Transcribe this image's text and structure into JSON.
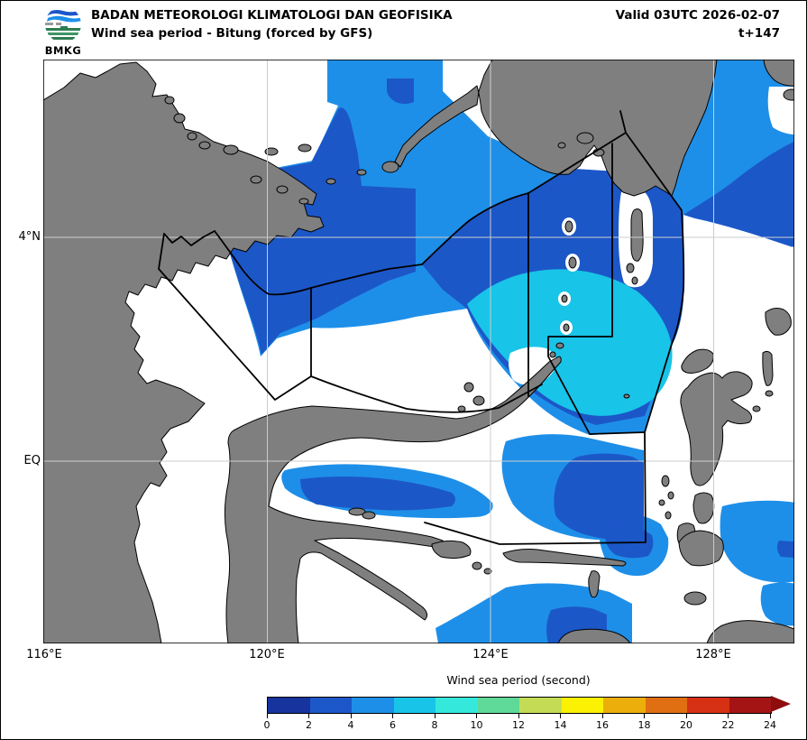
{
  "header": {
    "agency": "BADAN METEOROLOGI KLIMATOLOGI DAN GEOFISIKA",
    "product": "Wind sea period - Bitung (forced by GFS)",
    "valid": "Valid 03UTC 2026-02-07",
    "tstep": "t+147",
    "logo_text": "BMKG"
  },
  "map": {
    "lat_labels": [
      {
        "text": "4°N"
      },
      {
        "text": "EQ"
      }
    ],
    "lon_labels": [
      {
        "text": "116°E"
      },
      {
        "text": "120°E"
      },
      {
        "text": "124°E"
      },
      {
        "text": "128°E"
      }
    ]
  },
  "colorbar": {
    "title": "Wind sea period (second)",
    "unit": "second",
    "range_min": 0,
    "range_max": 24,
    "tick_step": 2,
    "ticks": [
      "0",
      "2",
      "4",
      "6",
      "8",
      "10",
      "12",
      "14",
      "16",
      "18",
      "20",
      "22",
      "24"
    ],
    "segment_colors": [
      "#16339E",
      "#1C57C8",
      "#1E8FE8",
      "#18C4E8",
      "#35E8DC",
      "#5FD998",
      "#C4DC55",
      "#FBF102",
      "#EBAE0A",
      "#E06E12",
      "#D63114",
      "#A41414"
    ],
    "arrow_color": "#8E0E0E"
  },
  "palette": {
    "land": "#7F7F7F",
    "coastline": "#000000",
    "sea_calm": "#FFFFFF",
    "period_2_4": "#1C57C8",
    "period_4_6": "#1E8FE8",
    "period_6_8": "#18C4E8",
    "period_8_10": "#35E8DC",
    "gridline": "#CCCCCC",
    "zone_boundary": "#000000"
  }
}
